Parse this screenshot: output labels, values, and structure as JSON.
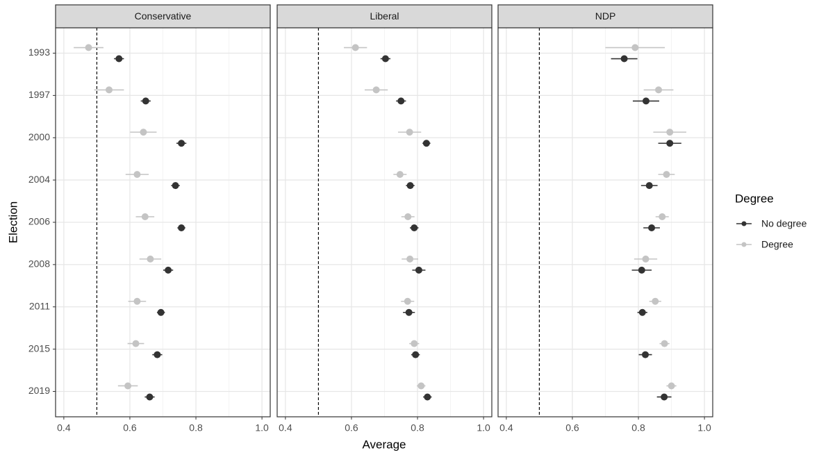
{
  "chart_data": {
    "type": "dot-whisker",
    "xlabel": "Average",
    "ylabel": "Election",
    "legend_title": "Degree",
    "categories": [
      "1993",
      "1997",
      "2000",
      "2004",
      "2006",
      "2008",
      "2011",
      "2015",
      "2019"
    ],
    "xlim": [
      0.375,
      1.025
    ],
    "xticks": [
      0.4,
      0.6,
      0.8,
      {
        "value": 1.0,
        "label": "1.0"
      }
    ],
    "minor_xticks": [
      0.5,
      0.7,
      0.9
    ],
    "xintercept": 0.5,
    "grid": true,
    "series": [
      {
        "name": "No degree",
        "color": "#333333"
      },
      {
        "name": "Degree",
        "color": "#c4c4c4"
      }
    ],
    "panels": [
      {
        "title": "Conservative",
        "series": [
          {
            "values": [
              0.567,
              0.648,
              0.756,
              0.738,
              0.756,
              0.716,
              0.694,
              0.683,
              0.66
            ],
            "errors": [
              0.015,
              0.015,
              0.015,
              0.013,
              0.012,
              0.015,
              0.012,
              0.015,
              0.015
            ]
          },
          {
            "values": [
              0.475,
              0.537,
              0.641,
              0.622,
              0.646,
              0.662,
              0.622,
              0.618,
              0.594
            ],
            "errors": [
              0.045,
              0.045,
              0.04,
              0.035,
              0.028,
              0.033,
              0.027,
              0.025,
              0.03
            ]
          }
        ]
      },
      {
        "title": "Liberal",
        "series": [
          {
            "values": [
              0.703,
              0.75,
              0.827,
              0.778,
              0.79,
              0.804,
              0.774,
              0.794,
              0.83
            ],
            "errors": [
              0.015,
              0.015,
              0.012,
              0.013,
              0.013,
              0.02,
              0.018,
              0.013,
              0.013
            ]
          },
          {
            "values": [
              0.612,
              0.675,
              0.776,
              0.747,
              0.771,
              0.777,
              0.77,
              0.79,
              0.811
            ],
            "errors": [
              0.035,
              0.035,
              0.035,
              0.02,
              0.02,
              0.025,
              0.02,
              0.015,
              0.013
            ]
          }
        ]
      },
      {
        "title": "NDP",
        "series": [
          {
            "values": [
              0.757,
              0.823,
              0.895,
              0.833,
              0.84,
              0.81,
              0.812,
              0.821,
              0.878
            ],
            "errors": [
              0.04,
              0.04,
              0.035,
              0.025,
              0.025,
              0.03,
              0.015,
              0.02,
              0.022
            ]
          },
          {
            "values": [
              0.79,
              0.861,
              0.895,
              0.885,
              0.872,
              0.822,
              0.851,
              0.879,
              0.9
            ],
            "errors": [
              0.09,
              0.045,
              0.05,
              0.025,
              0.02,
              0.035,
              0.018,
              0.015,
              0.015
            ]
          }
        ]
      }
    ]
  }
}
